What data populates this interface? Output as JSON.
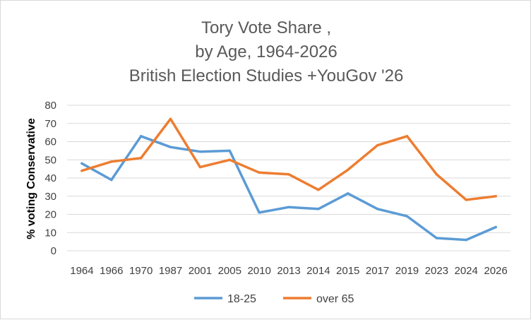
{
  "chart_data": {
    "type": "line",
    "title_lines": [
      "Tory Vote Share ,",
      "by Age, 1964-2026",
      "British Election Studies +YouGov '26"
    ],
    "xlabel": "",
    "ylabel": "% voting Conservative",
    "categories": [
      "1964",
      "1966",
      "1970",
      "1987",
      "2001",
      "2005",
      "2010",
      "2013",
      "2014",
      "2015",
      "2017",
      "2019",
      "2023",
      "2024",
      "2026"
    ],
    "ylim": [
      0,
      80
    ],
    "yticks": [
      0,
      10,
      20,
      30,
      40,
      50,
      60,
      70,
      80
    ],
    "grid": true,
    "legend_position": "bottom",
    "series": [
      {
        "name": "18-25",
        "color": "#5B9BD5",
        "values": [
          48,
          39,
          63,
          57,
          54.5,
          55,
          21,
          24,
          23,
          31.5,
          23,
          19,
          7,
          6,
          13
        ]
      },
      {
        "name": "over 65",
        "color": "#ED7D31",
        "values": [
          44,
          49,
          51,
          72.5,
          46,
          50,
          43,
          42,
          33.5,
          44.5,
          58,
          63,
          42,
          28,
          30
        ]
      }
    ]
  }
}
